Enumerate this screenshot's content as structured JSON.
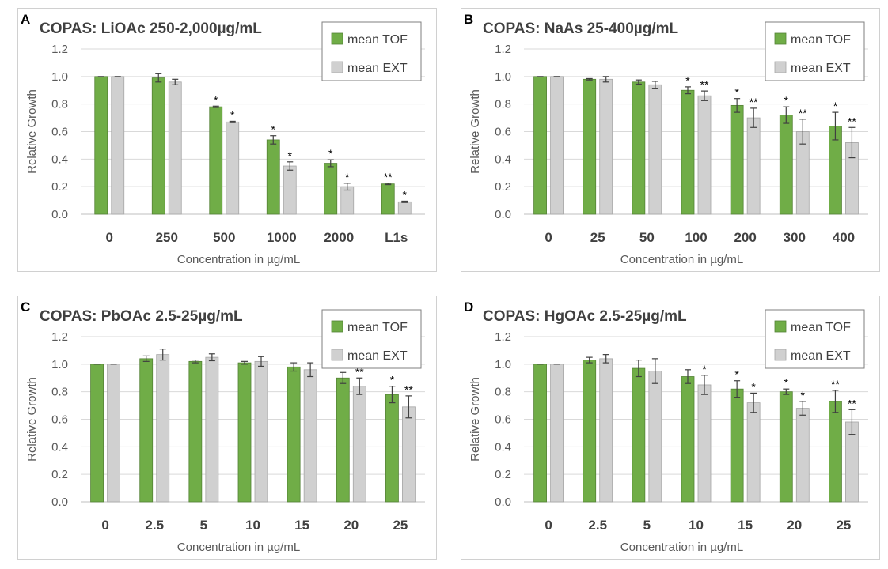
{
  "colors": {
    "tof": "#70ad47",
    "tof_edge": "#548235",
    "ext": "#d0d0d0",
    "ext_edge": "#a6a6a6"
  },
  "chart_data": [
    {
      "type": "bar",
      "letter": "A",
      "title": "COPAS: LiOAc 250-2,000µg/mL",
      "xlabel": "Concentration in µg/mL",
      "ylabel": "Relative Growth",
      "ylim": [
        0,
        1.2
      ],
      "yticks": [
        "0.0",
        "0.2",
        "0.4",
        "0.6",
        "0.8",
        "1.0",
        "1.2"
      ],
      "grid": true,
      "legend_position": "top-right",
      "categories": [
        "0",
        "250",
        "500",
        "1000",
        "2000",
        "L1s"
      ],
      "series": [
        {
          "name": "mean TOF",
          "values": [
            1.0,
            0.99,
            0.78,
            0.54,
            0.37,
            0.22
          ],
          "errors": [
            0,
            0.03,
            0.005,
            0.03,
            0.025,
            0.005
          ],
          "marks": [
            "",
            "",
            "*",
            "*",
            "*",
            "**"
          ]
        },
        {
          "name": "mean EXT",
          "values": [
            1.0,
            0.96,
            0.67,
            0.35,
            0.2,
            0.09
          ],
          "errors": [
            0,
            0.02,
            0.005,
            0.03,
            0.025,
            0.005
          ],
          "marks": [
            "",
            "",
            "*",
            "*",
            "*",
            "*"
          ]
        }
      ]
    },
    {
      "type": "bar",
      "letter": "B",
      "title": "COPAS: NaAs 25-400µg/mL",
      "xlabel": "Concentration in µg/mL",
      "ylabel": "Relative Growth",
      "ylim": [
        0,
        1.2
      ],
      "yticks": [
        "0.0",
        "0.2",
        "0.4",
        "0.6",
        "0.8",
        "1.0",
        "1.2"
      ],
      "grid": true,
      "legend_position": "top-right",
      "categories": [
        "0",
        "25",
        "50",
        "100",
        "200",
        "300",
        "400"
      ],
      "series": [
        {
          "name": "mean TOF",
          "values": [
            1.0,
            0.98,
            0.96,
            0.9,
            0.79,
            0.72,
            0.64
          ],
          "errors": [
            0,
            0.005,
            0.015,
            0.025,
            0.05,
            0.06,
            0.1
          ],
          "marks": [
            "",
            "",
            "",
            "*",
            "*",
            "*",
            "*"
          ]
        },
        {
          "name": "mean EXT",
          "values": [
            1.0,
            0.98,
            0.94,
            0.86,
            0.7,
            0.6,
            0.52
          ],
          "errors": [
            0,
            0.02,
            0.025,
            0.035,
            0.07,
            0.09,
            0.11
          ],
          "marks": [
            "",
            "",
            "",
            "**",
            "**",
            "**",
            "**"
          ]
        }
      ]
    },
    {
      "type": "bar",
      "letter": "C",
      "title": "COPAS: PbOAc 2.5-25µg/mL",
      "xlabel": "Concentration in µg/mL",
      "ylabel": "Relative Growth",
      "ylim": [
        0,
        1.2
      ],
      "yticks": [
        "0.0",
        "0.2",
        "0.4",
        "0.6",
        "0.8",
        "1.0",
        "1.2"
      ],
      "grid": true,
      "legend_position": "top-right",
      "categories": [
        "0",
        "2.5",
        "5",
        "10",
        "15",
        "20",
        "25"
      ],
      "series": [
        {
          "name": "mean TOF",
          "values": [
            1.0,
            1.04,
            1.02,
            1.01,
            0.98,
            0.9,
            0.78
          ],
          "errors": [
            0,
            0.02,
            0.01,
            0.01,
            0.03,
            0.04,
            0.06
          ],
          "marks": [
            "",
            "",
            "",
            "",
            "",
            "",
            "*"
          ]
        },
        {
          "name": "mean EXT",
          "values": [
            1.0,
            1.07,
            1.05,
            1.02,
            0.96,
            0.84,
            0.69
          ],
          "errors": [
            0,
            0.04,
            0.025,
            0.035,
            0.05,
            0.06,
            0.08
          ],
          "marks": [
            "",
            "",
            "",
            "",
            "",
            "**",
            "**"
          ]
        }
      ]
    },
    {
      "type": "bar",
      "letter": "D",
      "title": "COPAS: HgOAc 2.5-25µg/mL",
      "xlabel": "Concentration in µg/mL",
      "ylabel": "Relative Growth",
      "ylim": [
        0,
        1.2
      ],
      "yticks": [
        "0.0",
        "0.2",
        "0.4",
        "0.6",
        "0.8",
        "1.0",
        "1.2"
      ],
      "grid": true,
      "legend_position": "top-right",
      "categories": [
        "0",
        "2.5",
        "5",
        "10",
        "15",
        "20",
        "25"
      ],
      "series": [
        {
          "name": "mean TOF",
          "values": [
            1.0,
            1.03,
            0.97,
            0.91,
            0.82,
            0.8,
            0.73
          ],
          "errors": [
            0,
            0.02,
            0.06,
            0.05,
            0.06,
            0.02,
            0.08
          ],
          "marks": [
            "",
            "",
            "",
            "",
            "*",
            "*",
            "**"
          ]
        },
        {
          "name": "mean EXT",
          "values": [
            1.0,
            1.04,
            0.95,
            0.85,
            0.72,
            0.68,
            0.58
          ],
          "errors": [
            0,
            0.03,
            0.09,
            0.07,
            0.07,
            0.05,
            0.09
          ],
          "marks": [
            "",
            "",
            "",
            "*",
            "*",
            "*",
            "**"
          ]
        }
      ]
    }
  ]
}
